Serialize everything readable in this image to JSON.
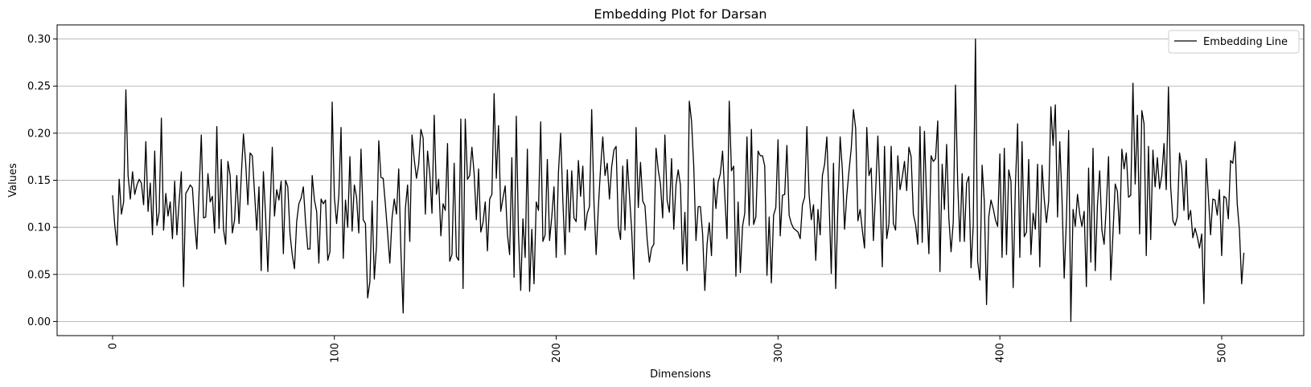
{
  "chart_data": {
    "type": "line",
    "title": "Embedding Plot for Darsan",
    "xlabel": "Dimensions",
    "ylabel": "Values",
    "xlim": [
      -25,
      537
    ],
    "ylim": [
      -0.015,
      0.315
    ],
    "xticks": [
      0,
      100,
      200,
      300,
      400,
      500
    ],
    "yticks": [
      0.0,
      0.05,
      0.1,
      0.15,
      0.2,
      0.25,
      0.3
    ],
    "ytick_labels": [
      "0.00",
      "0.05",
      "0.10",
      "0.15",
      "0.20",
      "0.25",
      "0.30"
    ],
    "grid": "horizontal",
    "legend": {
      "position": "top-right",
      "entries": [
        "Embedding Line"
      ]
    },
    "line_color": "#000000",
    "series": [
      {
        "name": "Embedding Line",
        "values": [
          0.134,
          0.102,
          0.081,
          0.151,
          0.114,
          0.127,
          0.246,
          0.155,
          0.13,
          0.159,
          0.135,
          0.145,
          0.151,
          0.147,
          0.124,
          0.191,
          0.117,
          0.147,
          0.092,
          0.181,
          0.102,
          0.116,
          0.216,
          0.097,
          0.136,
          0.112,
          0.127,
          0.088,
          0.149,
          0.092,
          0.127,
          0.159,
          0.037,
          0.136,
          0.14,
          0.145,
          0.142,
          0.105,
          0.077,
          0.137,
          0.198,
          0.11,
          0.111,
          0.157,
          0.127,
          0.133,
          0.094,
          0.207,
          0.099,
          0.172,
          0.098,
          0.082,
          0.17,
          0.155,
          0.094,
          0.108,
          0.155,
          0.104,
          0.153,
          0.199,
          0.169,
          0.124,
          0.179,
          0.176,
          0.137,
          0.097,
          0.143,
          0.054,
          0.159,
          0.112,
          0.053,
          0.118,
          0.185,
          0.112,
          0.14,
          0.129,
          0.149,
          0.072,
          0.15,
          0.143,
          0.093,
          0.071,
          0.056,
          0.106,
          0.125,
          0.131,
          0.143,
          0.106,
          0.077,
          0.077,
          0.155,
          0.129,
          0.117,
          0.062,
          0.13,
          0.125,
          0.129,
          0.065,
          0.074,
          0.233,
          0.132,
          0.104,
          0.134,
          0.206,
          0.067,
          0.129,
          0.1,
          0.175,
          0.096,
          0.145,
          0.132,
          0.094,
          0.183,
          0.108,
          0.104,
          0.025,
          0.042,
          0.128,
          0.045,
          0.081,
          0.192,
          0.153,
          0.152,
          0.124,
          0.094,
          0.062,
          0.11,
          0.13,
          0.114,
          0.162,
          0.074,
          0.009,
          0.12,
          0.145,
          0.085,
          0.198,
          0.172,
          0.152,
          0.167,
          0.204,
          0.195,
          0.114,
          0.181,
          0.157,
          0.115,
          0.219,
          0.135,
          0.151,
          0.091,
          0.125,
          0.118,
          0.189,
          0.064,
          0.071,
          0.168,
          0.069,
          0.065,
          0.215,
          0.035,
          0.215,
          0.151,
          0.155,
          0.185,
          0.157,
          0.108,
          0.162,
          0.095,
          0.105,
          0.127,
          0.075,
          0.13,
          0.135,
          0.242,
          0.152,
          0.208,
          0.117,
          0.131,
          0.144,
          0.093,
          0.071,
          0.174,
          0.047,
          0.218,
          0.093,
          0.033,
          0.109,
          0.068,
          0.183,
          0.032,
          0.098,
          0.04,
          0.127,
          0.118,
          0.212,
          0.085,
          0.092,
          0.172,
          0.086,
          0.111,
          0.143,
          0.068,
          0.158,
          0.2,
          0.128,
          0.071,
          0.161,
          0.095,
          0.16,
          0.11,
          0.106,
          0.171,
          0.133,
          0.165,
          0.097,
          0.115,
          0.122,
          0.225,
          0.128,
          0.071,
          0.121,
          0.163,
          0.196,
          0.155,
          0.168,
          0.13,
          0.164,
          0.182,
          0.186,
          0.101,
          0.087,
          0.165,
          0.097,
          0.172,
          0.135,
          0.098,
          0.045,
          0.206,
          0.121,
          0.169,
          0.128,
          0.123,
          0.087,
          0.063,
          0.078,
          0.082,
          0.184,
          0.161,
          0.146,
          0.11,
          0.198,
          0.129,
          0.116,
          0.173,
          0.098,
          0.145,
          0.161,
          0.145,
          0.061,
          0.116,
          0.054,
          0.234,
          0.213,
          0.165,
          0.086,
          0.122,
          0.122,
          0.093,
          0.033,
          0.082,
          0.105,
          0.07,
          0.152,
          0.12,
          0.148,
          0.157,
          0.181,
          0.133,
          0.088,
          0.234,
          0.16,
          0.165,
          0.048,
          0.127,
          0.052,
          0.101,
          0.115,
          0.196,
          0.102,
          0.204,
          0.103,
          0.111,
          0.181,
          0.176,
          0.176,
          0.165,
          0.049,
          0.111,
          0.041,
          0.113,
          0.121,
          0.193,
          0.091,
          0.134,
          0.135,
          0.187,
          0.113,
          0.104,
          0.099,
          0.097,
          0.095,
          0.088,
          0.124,
          0.132,
          0.207,
          0.135,
          0.108,
          0.124,
          0.065,
          0.119,
          0.092,
          0.155,
          0.167,
          0.196,
          0.128,
          0.051,
          0.168,
          0.035,
          0.124,
          0.196,
          0.161,
          0.098,
          0.134,
          0.16,
          0.184,
          0.225,
          0.205,
          0.107,
          0.119,
          0.097,
          0.078,
          0.206,
          0.155,
          0.163,
          0.086,
          0.138,
          0.197,
          0.132,
          0.058,
          0.186,
          0.088,
          0.104,
          0.186,
          0.104,
          0.097,
          0.176,
          0.14,
          0.153,
          0.17,
          0.139,
          0.185,
          0.175,
          0.114,
          0.103,
          0.082,
          0.207,
          0.084,
          0.202,
          0.127,
          0.072,
          0.176,
          0.17,
          0.173,
          0.213,
          0.053,
          0.167,
          0.119,
          0.188,
          0.11,
          0.074,
          0.106,
          0.251,
          0.146,
          0.085,
          0.157,
          0.085,
          0.147,
          0.154,
          0.057,
          0.102,
          0.3,
          0.064,
          0.044,
          0.166,
          0.127,
          0.018,
          0.111,
          0.129,
          0.12,
          0.108,
          0.101,
          0.178,
          0.068,
          0.184,
          0.071,
          0.161,
          0.149,
          0.036,
          0.144,
          0.21,
          0.068,
          0.191,
          0.09,
          0.095,
          0.172,
          0.071,
          0.115,
          0.098,
          0.167,
          0.058,
          0.166,
          0.13,
          0.105,
          0.128,
          0.228,
          0.187,
          0.23,
          0.111,
          0.191,
          0.131,
          0.046,
          0.108,
          0.203,
          0.0,
          0.119,
          0.101,
          0.135,
          0.114,
          0.101,
          0.117,
          0.037,
          0.163,
          0.063,
          0.184,
          0.054,
          0.124,
          0.16,
          0.097,
          0.082,
          0.123,
          0.175,
          0.044,
          0.094,
          0.146,
          0.138,
          0.093,
          0.183,
          0.162,
          0.179,
          0.132,
          0.134,
          0.253,
          0.146,
          0.219,
          0.093,
          0.224,
          0.21,
          0.07,
          0.186,
          0.087,
          0.182,
          0.143,
          0.174,
          0.141,
          0.155,
          0.189,
          0.14,
          0.249,
          0.143,
          0.107,
          0.102,
          0.111,
          0.179,
          0.163,
          0.118,
          0.171,
          0.108,
          0.118,
          0.089,
          0.099,
          0.09,
          0.078,
          0.093,
          0.019,
          0.173,
          0.133,
          0.092,
          0.13,
          0.129,
          0.113,
          0.14,
          0.07,
          0.133,
          0.131,
          0.109,
          0.171,
          0.168,
          0.191,
          0.125,
          0.097,
          0.04,
          0.073
        ]
      }
    ]
  }
}
